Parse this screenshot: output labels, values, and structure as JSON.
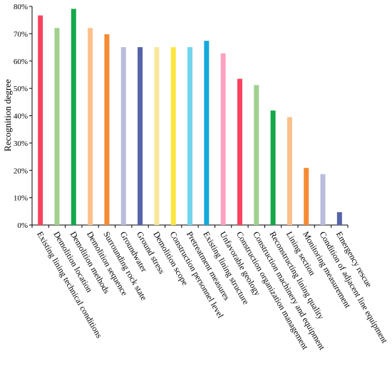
{
  "chart_data": {
    "type": "bar",
    "title": "",
    "xlabel": "",
    "ylabel": "Recognition degree",
    "ylim": [
      0,
      80
    ],
    "yticks": [
      0,
      10,
      20,
      30,
      40,
      50,
      60,
      70,
      80
    ],
    "ytick_labels": [
      "0%",
      "10%",
      "20%",
      "30%",
      "40%",
      "50%",
      "60%",
      "70%",
      "80%"
    ],
    "grid": false,
    "legend": "none",
    "categories": [
      "Existing lining technical conditions",
      "Demolition location",
      "Demolition methods",
      "Demolition sequence",
      "Surrounding rock state",
      "Groundwater",
      "Ground stress",
      "Demolition scope",
      "Construction personnel level",
      "Pretreatment measures",
      "Existing lining structure",
      "Unfavorable geology",
      "Construction organization management",
      "Construction machinery and equipment",
      "Reconstructing lining quality",
      "Lining section",
      "Monitoring measurement",
      "Condition of adjacent line equipment",
      "Emergency rescue"
    ],
    "values": [
      76.7,
      72.1,
      79.1,
      72.1,
      69.8,
      65.1,
      65.1,
      65.1,
      65.1,
      65.1,
      67.4,
      62.8,
      53.5,
      51.2,
      41.9,
      39.5,
      20.9,
      18.6,
      4.7
    ],
    "colors": [
      "#f7435d",
      "#9fd08d",
      "#14a84a",
      "#fcc08c",
      "#f58b33",
      "#b9bcdb",
      "#5663a9",
      "#f8e79b",
      "#fde642",
      "#72d5ee",
      "#14a8dc",
      "#fea3bf",
      "#f7435d",
      "#9fd08d",
      "#14a84a",
      "#fcc08c",
      "#f58b33",
      "#b9bcdb",
      "#5663a9"
    ]
  }
}
